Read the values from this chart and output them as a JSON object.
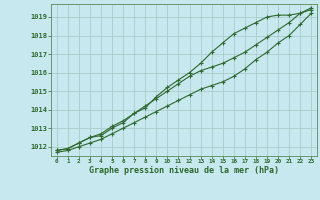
{
  "title": "Graphe pression niveau de la mer (hPa)",
  "bg_color": "#c6e8ee",
  "grid_color": "#aacccc",
  "line_color": "#2d6a2d",
  "marker_color": "#2d6a2d",
  "xlim": [
    -0.5,
    23.5
  ],
  "ylim": [
    1011.5,
    1019.7
  ],
  "yticks": [
    1012,
    1013,
    1014,
    1015,
    1016,
    1017,
    1018,
    1019
  ],
  "xticks": [
    0,
    1,
    2,
    3,
    4,
    5,
    6,
    7,
    8,
    9,
    10,
    11,
    12,
    13,
    14,
    15,
    16,
    17,
    18,
    19,
    20,
    21,
    22,
    23
  ],
  "series": [
    [
      1011.8,
      1011.9,
      1012.2,
      1012.5,
      1012.6,
      1013.0,
      1013.3,
      1013.8,
      1014.1,
      1014.7,
      1015.2,
      1015.6,
      1016.0,
      1016.5,
      1017.1,
      1017.6,
      1018.1,
      1018.4,
      1018.7,
      1019.0,
      1019.1,
      1019.1,
      1019.2,
      1019.4
    ],
    [
      1011.8,
      1011.9,
      1012.2,
      1012.5,
      1012.7,
      1013.1,
      1013.4,
      1013.8,
      1014.2,
      1014.6,
      1015.0,
      1015.4,
      1015.8,
      1016.1,
      1016.3,
      1016.5,
      1016.8,
      1017.1,
      1017.5,
      1017.9,
      1018.3,
      1018.7,
      1019.2,
      1019.5
    ],
    [
      1011.7,
      1011.8,
      1012.0,
      1012.2,
      1012.4,
      1012.7,
      1013.0,
      1013.3,
      1013.6,
      1013.9,
      1014.2,
      1014.5,
      1014.8,
      1015.1,
      1015.3,
      1015.5,
      1015.8,
      1016.2,
      1016.7,
      1017.1,
      1017.6,
      1018.0,
      1018.6,
      1019.2
    ]
  ]
}
